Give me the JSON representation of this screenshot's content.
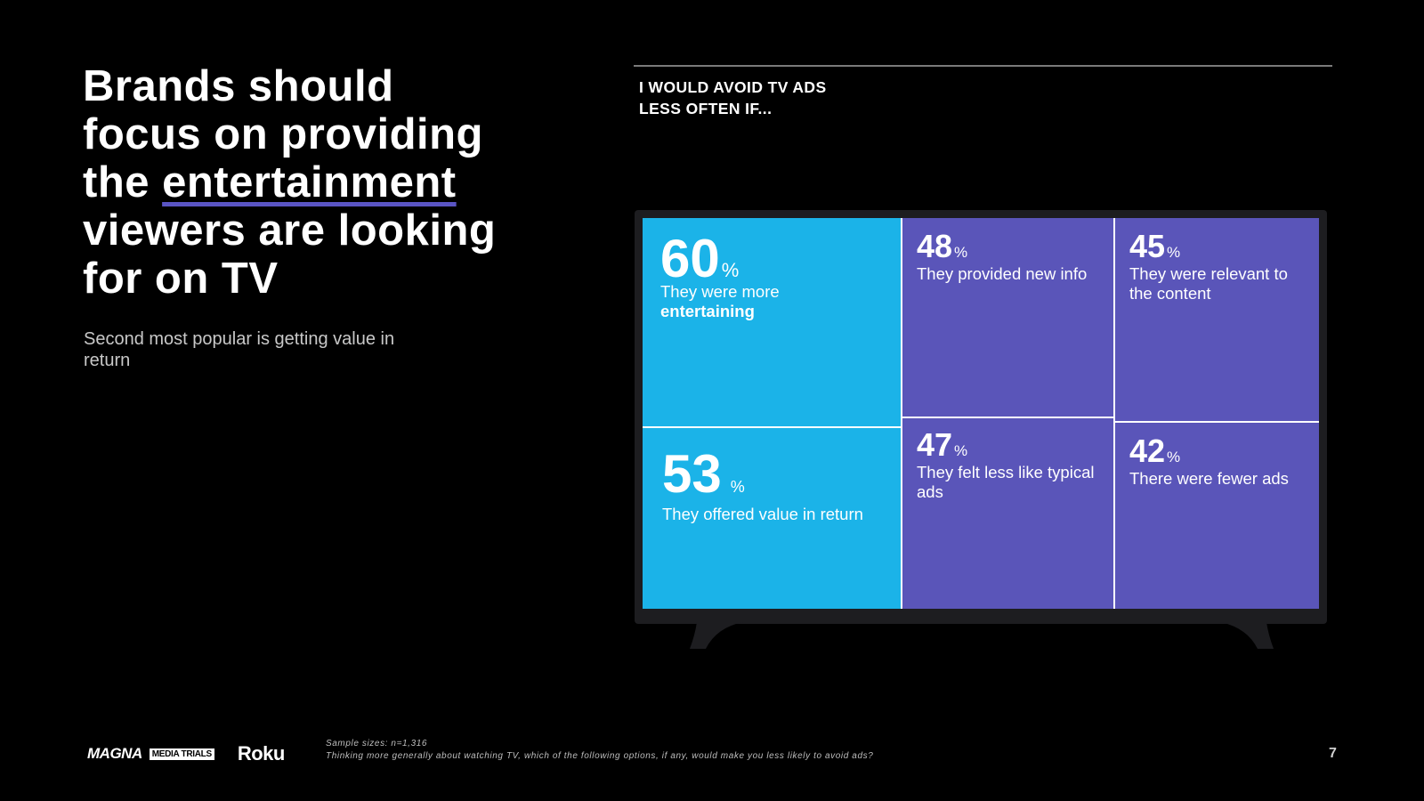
{
  "headline": {
    "line1": "Brands should",
    "line2": "focus on providing",
    "line3_prefix": "the ",
    "line3_highlight": "entertainment",
    "line4": "viewers are looking",
    "line5": "for on TV"
  },
  "subline": "Second most popular is getting value in return",
  "panel_title": {
    "line1": "I WOULD AVOID TV ADS",
    "line2": "LESS OFTEN IF..."
  },
  "colors": {
    "accent_teal": "#1bb3e8",
    "accent_purple": "#5a55b9",
    "underline": "#5a55c4"
  },
  "chart_data": {
    "type": "treemap",
    "title": "I WOULD AVOID TV ADS LESS OFTEN IF...",
    "unit": "%",
    "items": [
      {
        "label": "They were more",
        "label_bold": "entertaining",
        "value": 60
      },
      {
        "label": "They offered value in return",
        "label_bold": "",
        "value": 53
      },
      {
        "label": "They provided new info",
        "label_bold": "",
        "value": 48
      },
      {
        "label": "They felt less like typical ads",
        "label_bold": "",
        "value": 47
      },
      {
        "label": "They were relevant to the content",
        "label_bold": "",
        "value": 45
      },
      {
        "label": "There were fewer ads",
        "label_bold": "",
        "value": 42
      }
    ]
  },
  "footer": {
    "logo_magna": "MAGNA",
    "logo_trials": "MEDIA TRIALS",
    "logo_roku": "Roku",
    "sample": "Sample sizes: n=1,316",
    "question": "Thinking more generally about watching TV, which of the following options, if any, would make you less likely to avoid ads?",
    "page_number": "7"
  }
}
